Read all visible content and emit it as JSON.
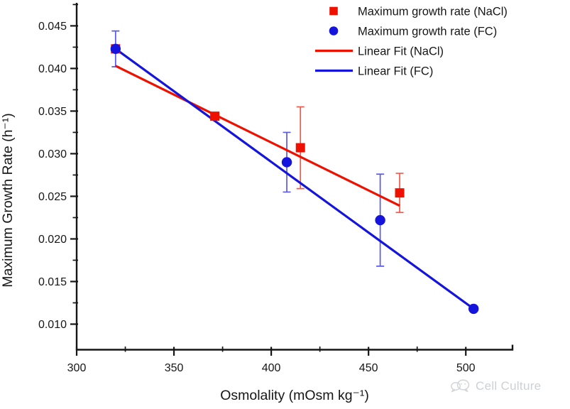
{
  "chart_data": {
    "type": "scatter",
    "title": "",
    "xlabel": "Osmolality (mOsm kg⁻¹)",
    "ylabel": "Maximum Growth Rate (h⁻¹)",
    "xlim": [
      300,
      524
    ],
    "ylim": [
      0.007,
      0.0477
    ],
    "grid": false,
    "legend_position": "top-right",
    "axis_color": "#161616",
    "x_ticks": {
      "major": [
        {
          "v": 300,
          "label": "300"
        },
        {
          "v": 350,
          "label": "350"
        },
        {
          "v": 400,
          "label": "400"
        },
        {
          "v": 450,
          "label": "450"
        },
        {
          "v": 500,
          "label": "500"
        }
      ],
      "minor": [
        325,
        375,
        425,
        475
      ]
    },
    "y_ticks": {
      "major": [
        {
          "v": 0.01,
          "label": "0.010"
        },
        {
          "v": 0.015,
          "label": "0.015"
        },
        {
          "v": 0.02,
          "label": "0.020"
        },
        {
          "v": 0.025,
          "label": "0.025"
        },
        {
          "v": 0.03,
          "label": "0.030"
        },
        {
          "v": 0.035,
          "label": "0.035"
        },
        {
          "v": 0.04,
          "label": "0.040"
        },
        {
          "v": 0.045,
          "label": "0.045"
        }
      ],
      "minor": [
        0.0125,
        0.0175,
        0.0225,
        0.0275,
        0.0325,
        0.0375,
        0.0425,
        0.0475
      ]
    },
    "series": [
      {
        "name": "Maximum growth rate (NaCl)",
        "marker": "square",
        "color": "#ee1республ100",
        "points": []
      }
    ]
  }
}
